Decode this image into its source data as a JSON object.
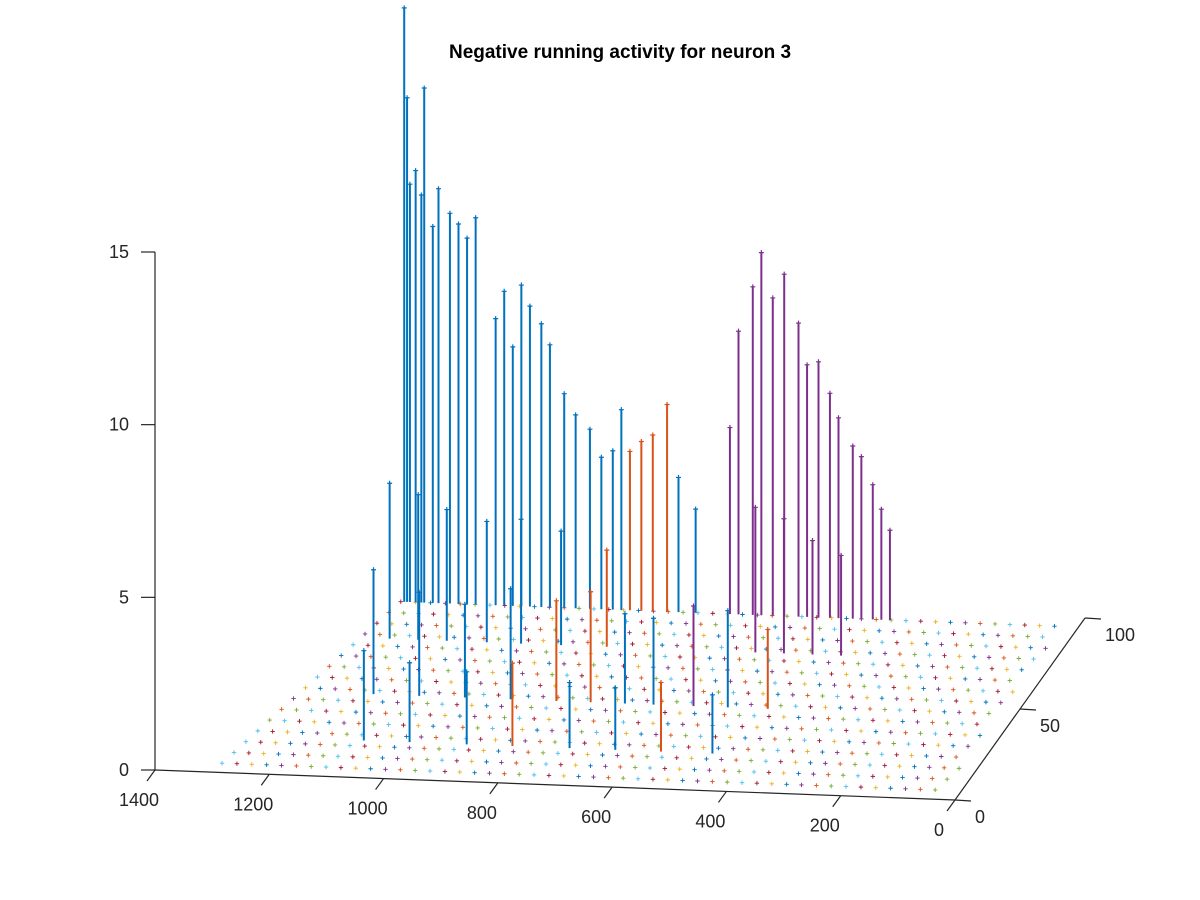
{
  "chart_data": {
    "type": "stem3",
    "title": "Negative running activity for neuron 3",
    "xlabel": "",
    "ylabel": "",
    "zlabel": "",
    "xlim": [
      0,
      1400
    ],
    "ylim": [
      0,
      100
    ],
    "zlim": [
      0,
      15
    ],
    "x_ticks": [
      "0",
      "200",
      "400",
      "600",
      "800",
      "1000",
      "1200",
      "1400"
    ],
    "y_ticks": [
      "0",
      "50",
      "100"
    ],
    "z_ticks": [
      "0",
      "5",
      "10",
      "15"
    ],
    "grid": false,
    "legend": "none",
    "colors": {
      "series_blue": "#0072BD",
      "series_orange": "#D95319",
      "series_purple": "#7E2F8E",
      "series_lightblue": "#4DBEEE",
      "series_yellow": "#EDB120",
      "series_green": "#77AC30",
      "series_darkred": "#A2142F"
    },
    "stems": [
      {
        "color": "blue",
        "x": 1180,
        "y": 95,
        "z": 17.2
      },
      {
        "color": "blue",
        "x": 1175,
        "y": 95,
        "z": 14.6
      },
      {
        "color": "blue",
        "x": 1170,
        "y": 95,
        "z": 12.1
      },
      {
        "color": "blue",
        "x": 1160,
        "y": 95,
        "z": 12.5
      },
      {
        "color": "blue",
        "x": 1150,
        "y": 95,
        "z": 11.8
      },
      {
        "color": "blue",
        "x": 1145,
        "y": 95,
        "z": 14.9
      },
      {
        "color": "blue",
        "x": 1130,
        "y": 95,
        "z": 10.9
      },
      {
        "color": "blue",
        "x": 1120,
        "y": 95,
        "z": 12.0
      },
      {
        "color": "blue",
        "x": 1100,
        "y": 95,
        "z": 11.3
      },
      {
        "color": "blue",
        "x": 1085,
        "y": 95,
        "z": 11.0
      },
      {
        "color": "blue",
        "x": 1070,
        "y": 95,
        "z": 10.6
      },
      {
        "color": "blue",
        "x": 1055,
        "y": 95,
        "z": 11.2
      },
      {
        "color": "blue",
        "x": 1020,
        "y": 95,
        "z": 8.3
      },
      {
        "color": "blue",
        "x": 1005,
        "y": 95,
        "z": 9.1
      },
      {
        "color": "blue",
        "x": 990,
        "y": 95,
        "z": 7.5
      },
      {
        "color": "blue",
        "x": 975,
        "y": 95,
        "z": 9.3
      },
      {
        "color": "blue",
        "x": 960,
        "y": 95,
        "z": 8.7
      },
      {
        "color": "blue",
        "x": 940,
        "y": 95,
        "z": 8.2
      },
      {
        "color": "blue",
        "x": 925,
        "y": 95,
        "z": 7.6
      },
      {
        "color": "blue",
        "x": 900,
        "y": 95,
        "z": 6.2
      },
      {
        "color": "blue",
        "x": 880,
        "y": 95,
        "z": 5.6
      },
      {
        "color": "blue",
        "x": 855,
        "y": 95,
        "z": 5.2
      },
      {
        "color": "blue",
        "x": 835,
        "y": 95,
        "z": 4.4
      },
      {
        "color": "blue",
        "x": 815,
        "y": 95,
        "z": 4.6
      },
      {
        "color": "blue",
        "x": 800,
        "y": 95,
        "z": 5.8
      },
      {
        "color": "orange",
        "x": 785,
        "y": 95,
        "z": 4.6
      },
      {
        "color": "orange",
        "x": 765,
        "y": 95,
        "z": 4.9
      },
      {
        "color": "orange",
        "x": 745,
        "y": 95,
        "z": 5.1
      },
      {
        "color": "orange",
        "x": 720,
        "y": 95,
        "z": 6.0
      },
      {
        "color": "blue",
        "x": 700,
        "y": 95,
        "z": 3.9
      },
      {
        "color": "blue",
        "x": 670,
        "y": 95,
        "z": 3.0
      },
      {
        "color": "purple",
        "x": 610,
        "y": 95,
        "z": 5.4
      },
      {
        "color": "purple",
        "x": 595,
        "y": 95,
        "z": 8.2
      },
      {
        "color": "purple",
        "x": 570,
        "y": 95,
        "z": 9.5
      },
      {
        "color": "purple",
        "x": 555,
        "y": 95,
        "z": 10.5
      },
      {
        "color": "purple",
        "x": 535,
        "y": 95,
        "z": 9.2
      },
      {
        "color": "purple",
        "x": 515,
        "y": 95,
        "z": 9.9
      },
      {
        "color": "purple",
        "x": 490,
        "y": 95,
        "z": 8.5
      },
      {
        "color": "purple",
        "x": 475,
        "y": 95,
        "z": 7.3
      },
      {
        "color": "purple",
        "x": 455,
        "y": 95,
        "z": 7.4
      },
      {
        "color": "purple",
        "x": 435,
        "y": 95,
        "z": 6.5
      },
      {
        "color": "purple",
        "x": 420,
        "y": 95,
        "z": 5.8
      },
      {
        "color": "purple",
        "x": 395,
        "y": 95,
        "z": 5.0
      },
      {
        "color": "purple",
        "x": 380,
        "y": 95,
        "z": 4.7
      },
      {
        "color": "purple",
        "x": 360,
        "y": 95,
        "z": 3.9
      },
      {
        "color": "purple",
        "x": 345,
        "y": 95,
        "z": 3.2
      },
      {
        "color": "purple",
        "x": 330,
        "y": 95,
        "z": 2.6
      },
      {
        "color": "blue",
        "x": 1160,
        "y": 75,
        "z": 4.5
      },
      {
        "color": "blue",
        "x": 1110,
        "y": 75,
        "z": 4.2
      },
      {
        "color": "blue",
        "x": 1060,
        "y": 75,
        "z": 3.8
      },
      {
        "color": "blue",
        "x": 990,
        "y": 75,
        "z": 3.5
      },
      {
        "color": "blue",
        "x": 930,
        "y": 75,
        "z": 3.6
      },
      {
        "color": "blue",
        "x": 860,
        "y": 75,
        "z": 3.3
      },
      {
        "color": "orange",
        "x": 780,
        "y": 75,
        "z": 2.8
      },
      {
        "color": "purple",
        "x": 520,
        "y": 75,
        "z": 4.2
      },
      {
        "color": "purple",
        "x": 470,
        "y": 75,
        "z": 3.9
      },
      {
        "color": "purple",
        "x": 420,
        "y": 75,
        "z": 3.3
      },
      {
        "color": "purple",
        "x": 370,
        "y": 75,
        "z": 2.9
      },
      {
        "color": "blue",
        "x": 1120,
        "y": 45,
        "z": 3.6
      },
      {
        "color": "blue",
        "x": 1040,
        "y": 45,
        "z": 3.0
      },
      {
        "color": "blue",
        "x": 960,
        "y": 45,
        "z": 2.7
      },
      {
        "color": "blue",
        "x": 880,
        "y": 45,
        "z": 3.2
      },
      {
        "color": "orange",
        "x": 800,
        "y": 45,
        "z": 2.9
      },
      {
        "color": "orange",
        "x": 740,
        "y": 45,
        "z": 3.2
      },
      {
        "color": "blue",
        "x": 680,
        "y": 45,
        "z": 2.6
      },
      {
        "color": "blue",
        "x": 630,
        "y": 45,
        "z": 2.5
      },
      {
        "color": "purple",
        "x": 560,
        "y": 45,
        "z": 2.9
      },
      {
        "color": "blue",
        "x": 500,
        "y": 45,
        "z": 2.8
      },
      {
        "color": "orange",
        "x": 430,
        "y": 45,
        "z": 2.3
      },
      {
        "color": "blue",
        "x": 1080,
        "y": 20,
        "z": 2.6
      },
      {
        "color": "blue",
        "x": 1000,
        "y": 20,
        "z": 2.3
      },
      {
        "color": "blue",
        "x": 900,
        "y": 20,
        "z": 2.1
      },
      {
        "color": "orange",
        "x": 820,
        "y": 20,
        "z": 2.4
      },
      {
        "color": "blue",
        "x": 720,
        "y": 20,
        "z": 1.9
      },
      {
        "color": "blue",
        "x": 640,
        "y": 20,
        "z": 1.8
      },
      {
        "color": "orange",
        "x": 560,
        "y": 20,
        "z": 2.0
      },
      {
        "color": "blue",
        "x": 470,
        "y": 20,
        "z": 1.7
      }
    ]
  }
}
